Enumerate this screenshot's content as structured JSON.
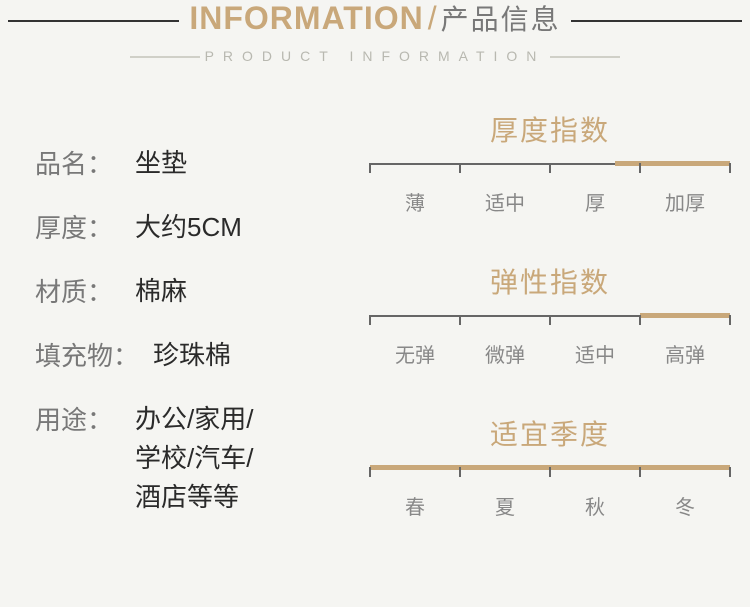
{
  "header": {
    "title_en": "INFORMATION",
    "slash": "/",
    "title_cn": "产品信息",
    "subtitle": "PRODUCT INFORMATION"
  },
  "specs": [
    {
      "label": "品名：",
      "value": "坐垫"
    },
    {
      "label": "厚度：",
      "value": "大约5CM"
    },
    {
      "label": "材质：",
      "value": "棉麻"
    },
    {
      "label": "填充物：",
      "value": "珍珠棉",
      "wide": true
    },
    {
      "label": "用途：",
      "value": "办公/家用/\n学校/汽车/\n酒店等等"
    }
  ],
  "gauges": [
    {
      "title": "厚度指数",
      "labels": [
        "薄",
        "适中",
        "厚",
        "加厚"
      ],
      "fill_start_pct": 68,
      "fill_end_pct": 100,
      "ticks": [
        0,
        25,
        50,
        75,
        100
      ]
    },
    {
      "title": "弹性指数",
      "labels": [
        "无弹",
        "微弹",
        "适中",
        "高弹"
      ],
      "fill_start_pct": 75,
      "fill_end_pct": 100,
      "ticks": [
        0,
        25,
        50,
        75,
        100
      ]
    },
    {
      "title": "适宜季度",
      "labels": [
        "春",
        "夏",
        "秋",
        "冬"
      ],
      "fill_start_pct": 0,
      "fill_end_pct": 100,
      "ticks": [
        0,
        25,
        50,
        75,
        100
      ]
    }
  ],
  "colors": {
    "accent": "#c9a87a",
    "text_grey": "#787878",
    "text_dark": "#2a2a2a",
    "bg": "#f5f5f2",
    "tick": "#666666"
  }
}
